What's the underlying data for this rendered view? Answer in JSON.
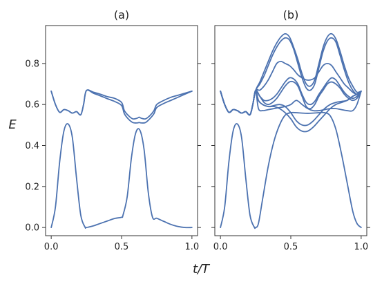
{
  "figure": {
    "xlabel": "t/T",
    "ylabel": "E",
    "line_color": "#4C72B0"
  },
  "chart_data": [
    {
      "type": "line",
      "title": "(a)",
      "xlim": [
        -0.04,
        1.04
      ],
      "ylim": [
        -0.04,
        0.985
      ],
      "xticks": [
        0.0,
        0.5,
        1.0
      ],
      "xtick_labels": [
        "0.0",
        "0.5",
        "1.0"
      ],
      "yticks": [
        0.0,
        0.2,
        0.4,
        0.6,
        0.8
      ],
      "ytick_labels": [
        "0.0",
        "0.2",
        "0.4",
        "0.6",
        "0.8"
      ],
      "grid": false,
      "series": [
        {
          "x": [
            0.0,
            0.03,
            0.06,
            0.09,
            0.12,
            0.15,
            0.18,
            0.21,
            0.24,
            0.25,
            0.3,
            0.35,
            0.4,
            0.45,
            0.5,
            0.51,
            0.54,
            0.57,
            0.6,
            0.63,
            0.66,
            0.69,
            0.72,
            0.75,
            0.8,
            0.85,
            0.9,
            0.95,
            1.0
          ],
          "y": [
            0.0,
            0.1,
            0.32,
            0.47,
            0.505,
            0.44,
            0.24,
            0.06,
            0.002,
            0.0,
            0.008,
            0.02,
            0.032,
            0.044,
            0.05,
            0.06,
            0.15,
            0.34,
            0.46,
            0.475,
            0.38,
            0.17,
            0.05,
            0.045,
            0.03,
            0.015,
            0.005,
            0.0,
            0.0
          ]
        },
        {
          "x": [
            0.0,
            0.03,
            0.06,
            0.09,
            0.12,
            0.15,
            0.18,
            0.21,
            0.23,
            0.25,
            0.3,
            0.35,
            0.4,
            0.45,
            0.5,
            0.52,
            0.55,
            0.58,
            0.61,
            0.625,
            0.64,
            0.67,
            0.7,
            0.73,
            0.75,
            0.8,
            0.85,
            0.9,
            0.95,
            1.0
          ],
          "y": [
            0.665,
            0.6,
            0.562,
            0.575,
            0.57,
            0.558,
            0.565,
            0.55,
            0.6,
            0.668,
            0.66,
            0.65,
            0.638,
            0.63,
            0.61,
            0.57,
            0.545,
            0.53,
            0.533,
            0.538,
            0.533,
            0.53,
            0.545,
            0.57,
            0.6,
            0.62,
            0.635,
            0.645,
            0.655,
            0.665
          ]
        },
        {
          "x": [
            0.0,
            0.03,
            0.06,
            0.09,
            0.12,
            0.15,
            0.18,
            0.21,
            0.23,
            0.25,
            0.3,
            0.35,
            0.4,
            0.45,
            0.5,
            0.52,
            0.55,
            0.58,
            0.61,
            0.625,
            0.64,
            0.67,
            0.7,
            0.73,
            0.75,
            0.8,
            0.85,
            0.9,
            0.95,
            1.0
          ],
          "y": [
            0.665,
            0.6,
            0.562,
            0.575,
            0.57,
            0.558,
            0.565,
            0.55,
            0.6,
            0.668,
            0.655,
            0.642,
            0.628,
            0.615,
            0.595,
            0.555,
            0.528,
            0.512,
            0.51,
            0.512,
            0.51,
            0.512,
            0.53,
            0.555,
            0.585,
            0.605,
            0.62,
            0.635,
            0.65,
            0.665
          ]
        }
      ]
    },
    {
      "type": "line",
      "title": "(b)",
      "xlim": [
        -0.04,
        1.04
      ],
      "ylim": [
        -0.04,
        0.985
      ],
      "xticks": [
        0.0,
        0.5,
        1.0
      ],
      "xtick_labels": [
        "0.0",
        "0.5",
        "1.0"
      ],
      "yticks": [
        0.0,
        0.2,
        0.4,
        0.6,
        0.8
      ],
      "ytick_labels": [
        "",
        "",
        "",
        "",
        ""
      ],
      "grid": false,
      "series": [
        {
          "x": [
            0.0,
            0.03,
            0.06,
            0.09,
            0.12,
            0.15,
            0.18,
            0.21,
            0.24,
            0.25,
            0.27,
            0.3,
            0.34,
            0.38,
            0.42,
            0.46,
            0.5,
            0.54,
            0.58,
            0.62,
            0.66,
            0.7,
            0.74,
            0.78,
            0.82,
            0.86,
            0.9,
            0.94,
            0.97,
            1.0
          ],
          "y": [
            0.0,
            0.1,
            0.32,
            0.47,
            0.505,
            0.44,
            0.24,
            0.06,
            0.002,
            0.0,
            0.02,
            0.14,
            0.3,
            0.42,
            0.5,
            0.548,
            0.56,
            0.56,
            0.558,
            0.557,
            0.558,
            0.56,
            0.56,
            0.545,
            0.48,
            0.36,
            0.22,
            0.08,
            0.02,
            0.0
          ]
        },
        {
          "x": [
            0.0,
            0.03,
            0.06,
            0.09,
            0.12,
            0.15,
            0.18,
            0.21,
            0.23,
            0.25,
            0.27,
            0.3,
            0.34,
            0.38,
            0.42,
            0.46,
            0.5,
            0.54,
            0.58,
            0.62,
            0.66,
            0.7,
            0.74,
            0.78,
            0.82,
            0.86,
            0.9,
            0.94,
            0.97,
            1.0
          ],
          "y": [
            0.665,
            0.6,
            0.562,
            0.575,
            0.57,
            0.558,
            0.565,
            0.55,
            0.6,
            0.668,
            0.58,
            0.57,
            0.575,
            0.58,
            0.585,
            0.59,
            0.6,
            0.62,
            0.6,
            0.58,
            0.57,
            0.57,
            0.575,
            0.58,
            0.58,
            0.575,
            0.57,
            0.57,
            0.6,
            0.665
          ]
        },
        {
          "x": [
            0.0,
            0.03,
            0.06,
            0.09,
            0.12,
            0.15,
            0.18,
            0.21,
            0.23,
            0.25,
            0.27,
            0.3,
            0.34,
            0.38,
            0.42,
            0.46,
            0.5,
            0.54,
            0.58,
            0.62,
            0.66,
            0.7,
            0.74,
            0.78,
            0.82,
            0.86,
            0.9,
            0.94,
            0.97,
            1.0
          ],
          "y": [
            0.665,
            0.6,
            0.562,
            0.575,
            0.57,
            0.558,
            0.565,
            0.55,
            0.6,
            0.668,
            0.62,
            0.6,
            0.59,
            0.595,
            0.6,
            0.59,
            0.56,
            0.52,
            0.5,
            0.5,
            0.52,
            0.55,
            0.58,
            0.6,
            0.61,
            0.615,
            0.62,
            0.64,
            0.65,
            0.665
          ]
        },
        {
          "x": [
            0.0,
            0.03,
            0.06,
            0.09,
            0.12,
            0.15,
            0.18,
            0.21,
            0.23,
            0.25,
            0.27,
            0.3,
            0.34,
            0.38,
            0.42,
            0.46,
            0.5,
            0.54,
            0.58,
            0.62,
            0.66,
            0.7,
            0.74,
            0.78,
            0.82,
            0.86,
            0.9,
            0.94,
            0.97,
            1.0
          ],
          "y": [
            0.665,
            0.6,
            0.562,
            0.575,
            0.57,
            0.558,
            0.565,
            0.55,
            0.6,
            0.668,
            0.62,
            0.6,
            0.59,
            0.59,
            0.58,
            0.56,
            0.53,
            0.49,
            0.47,
            0.47,
            0.49,
            0.52,
            0.55,
            0.58,
            0.6,
            0.61,
            0.62,
            0.64,
            0.65,
            0.665
          ]
        },
        {
          "x": [
            0.0,
            0.03,
            0.06,
            0.09,
            0.12,
            0.15,
            0.18,
            0.21,
            0.23,
            0.25,
            0.28,
            0.31,
            0.34,
            0.37,
            0.4,
            0.43,
            0.46,
            0.49,
            0.52,
            0.55,
            0.58,
            0.61,
            0.64,
            0.67,
            0.7,
            0.73,
            0.76,
            0.79,
            0.82,
            0.85,
            0.88,
            0.91,
            0.94,
            0.97,
            1.0
          ],
          "y": [
            0.665,
            0.6,
            0.562,
            0.575,
            0.57,
            0.558,
            0.565,
            0.55,
            0.6,
            0.668,
            0.64,
            0.62,
            0.62,
            0.63,
            0.65,
            0.68,
            0.71,
            0.73,
            0.725,
            0.7,
            0.65,
            0.61,
            0.6,
            0.615,
            0.65,
            0.68,
            0.71,
            0.73,
            0.72,
            0.69,
            0.66,
            0.64,
            0.63,
            0.64,
            0.665
          ]
        },
        {
          "x": [
            0.0,
            0.03,
            0.06,
            0.09,
            0.12,
            0.15,
            0.18,
            0.21,
            0.23,
            0.25,
            0.28,
            0.31,
            0.34,
            0.37,
            0.4,
            0.43,
            0.46,
            0.49,
            0.52,
            0.55,
            0.58,
            0.61,
            0.64,
            0.67,
            0.7,
            0.73,
            0.76,
            0.79,
            0.82,
            0.85,
            0.88,
            0.91,
            0.94,
            0.97,
            1.0
          ],
          "y": [
            0.665,
            0.6,
            0.562,
            0.575,
            0.57,
            0.558,
            0.565,
            0.55,
            0.6,
            0.668,
            0.64,
            0.61,
            0.6,
            0.61,
            0.63,
            0.66,
            0.69,
            0.71,
            0.71,
            0.69,
            0.64,
            0.59,
            0.58,
            0.6,
            0.64,
            0.67,
            0.7,
            0.71,
            0.7,
            0.68,
            0.65,
            0.63,
            0.62,
            0.63,
            0.665
          ]
        },
        {
          "x": [
            0.0,
            0.03,
            0.06,
            0.09,
            0.12,
            0.15,
            0.18,
            0.21,
            0.23,
            0.25,
            0.28,
            0.31,
            0.34,
            0.37,
            0.4,
            0.43,
            0.46,
            0.49,
            0.52,
            0.55,
            0.58,
            0.61,
            0.64,
            0.67,
            0.7,
            0.73,
            0.76,
            0.79,
            0.82,
            0.85,
            0.88,
            0.91,
            0.94,
            0.97,
            1.0
          ],
          "y": [
            0.665,
            0.6,
            0.562,
            0.575,
            0.57,
            0.558,
            0.565,
            0.55,
            0.6,
            0.668,
            0.67,
            0.69,
            0.72,
            0.76,
            0.8,
            0.81,
            0.8,
            0.79,
            0.77,
            0.745,
            0.73,
            0.72,
            0.72,
            0.73,
            0.76,
            0.79,
            0.8,
            0.79,
            0.76,
            0.73,
            0.7,
            0.68,
            0.66,
            0.65,
            0.665
          ]
        },
        {
          "x": [
            0.0,
            0.03,
            0.06,
            0.09,
            0.12,
            0.15,
            0.18,
            0.21,
            0.23,
            0.25,
            0.28,
            0.31,
            0.34,
            0.37,
            0.4,
            0.43,
            0.46,
            0.49,
            0.52,
            0.55,
            0.58,
            0.61,
            0.64,
            0.67,
            0.7,
            0.73,
            0.76,
            0.79,
            0.82,
            0.85,
            0.88,
            0.91,
            0.94,
            0.97,
            1.0
          ],
          "y": [
            0.665,
            0.6,
            0.562,
            0.575,
            0.57,
            0.558,
            0.565,
            0.55,
            0.6,
            0.668,
            0.71,
            0.76,
            0.81,
            0.86,
            0.9,
            0.93,
            0.945,
            0.93,
            0.88,
            0.82,
            0.75,
            0.7,
            0.69,
            0.72,
            0.8,
            0.88,
            0.93,
            0.945,
            0.92,
            0.86,
            0.79,
            0.73,
            0.69,
            0.66,
            0.665
          ]
        },
        {
          "x": [
            0.0,
            0.03,
            0.06,
            0.09,
            0.12,
            0.15,
            0.18,
            0.21,
            0.23,
            0.25,
            0.28,
            0.31,
            0.34,
            0.37,
            0.4,
            0.43,
            0.46,
            0.49,
            0.52,
            0.55,
            0.58,
            0.61,
            0.64,
            0.67,
            0.7,
            0.73,
            0.76,
            0.79,
            0.82,
            0.85,
            0.88,
            0.91,
            0.94,
            0.97,
            1.0
          ],
          "y": [
            0.665,
            0.6,
            0.562,
            0.575,
            0.57,
            0.558,
            0.565,
            0.55,
            0.6,
            0.668,
            0.7,
            0.74,
            0.79,
            0.84,
            0.88,
            0.91,
            0.925,
            0.915,
            0.87,
            0.8,
            0.73,
            0.68,
            0.67,
            0.7,
            0.78,
            0.86,
            0.91,
            0.925,
            0.905,
            0.84,
            0.77,
            0.71,
            0.67,
            0.65,
            0.665
          ]
        }
      ]
    }
  ]
}
